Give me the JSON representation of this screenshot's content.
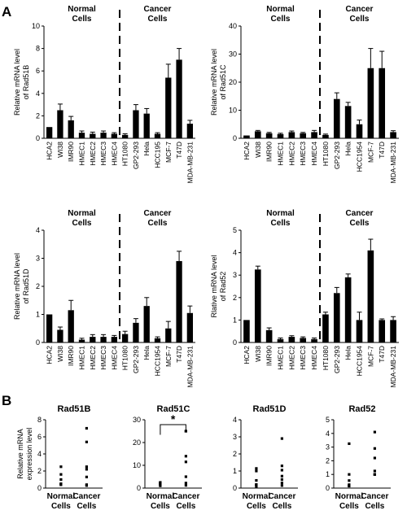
{
  "panel_labels": {
    "a": "A",
    "b": "B"
  },
  "chart_data": [
    {
      "type": "bar",
      "panel": "A",
      "ylabel": [
        "Relative mRNA level",
        "of Rad51B"
      ],
      "ylim": [
        0,
        10
      ],
      "yticks": [
        0,
        2,
        4,
        6,
        8,
        10
      ],
      "group_labels": {
        "normal": [
          "Normal",
          "Cells"
        ],
        "cancer": [
          "Cancer",
          "Cells"
        ]
      },
      "categories": [
        "HCA2",
        "WI38",
        "IMR90",
        "HMEC1",
        "HMEC2",
        "HMEC3",
        "HMEC4",
        "HT1080",
        "GP2-293",
        "Hela",
        "HCC195",
        "MCF-7",
        "T47D",
        "MDA-MB-231"
      ],
      "values": [
        1.0,
        2.5,
        1.6,
        0.5,
        0.4,
        0.5,
        0.4,
        0.3,
        2.5,
        2.2,
        0.4,
        5.4,
        7.0,
        1.3
      ],
      "errors": [
        0.0,
        0.55,
        0.35,
        0.15,
        0.15,
        0.15,
        0.1,
        0.1,
        0.5,
        0.45,
        0.1,
        1.2,
        1.0,
        0.3
      ],
      "divider_after_index": 6
    },
    {
      "type": "bar",
      "panel": "A",
      "ylabel": [
        "Relative mRNA level",
        "of Rad51C"
      ],
      "ylim": [
        0,
        40
      ],
      "yticks": [
        0,
        10,
        20,
        30,
        40
      ],
      "group_labels": {
        "normal": [
          "Normal",
          "Cells"
        ],
        "cancer": [
          "Cancer",
          "Cells"
        ]
      },
      "categories": [
        "HCA2",
        "WI38",
        "IMR90",
        "HMEC1",
        "HMEC2",
        "HMEC3",
        "HMEC4",
        "HT1080",
        "GP2-293",
        "Hela",
        "HCC1954",
        "MCF-7",
        "T47D",
        "MDA-MB-231"
      ],
      "values": [
        1.0,
        2.5,
        1.8,
        1.5,
        2.2,
        1.8,
        2.2,
        1.2,
        14.0,
        11.5,
        5.0,
        25.0,
        25.0,
        2.2
      ],
      "errors": [
        0.0,
        0.3,
        0.3,
        0.3,
        0.4,
        0.3,
        0.6,
        0.3,
        2.2,
        1.3,
        1.5,
        7.0,
        6.0,
        0.5
      ],
      "divider_after_index": 6
    },
    {
      "type": "bar",
      "panel": "A",
      "ylabel": [
        "Relative mRNA level",
        "of Rad51D"
      ],
      "ylim": [
        0,
        4
      ],
      "yticks": [
        0,
        1,
        2,
        3,
        4
      ],
      "group_labels": {
        "normal": [
          "Normal",
          "Cells"
        ],
        "cancer": [
          "Cancer",
          "Cells"
        ]
      },
      "categories": [
        "HCA2",
        "WI38",
        "IMR90",
        "HMEC1",
        "HMEC2",
        "HMEC3",
        "HMEC4",
        "HT1080",
        "GP2-293",
        "Hela",
        "HCC1954",
        "MCF-7",
        "T47D",
        "MDA-MB-231"
      ],
      "values": [
        1.0,
        0.45,
        1.15,
        0.1,
        0.2,
        0.2,
        0.2,
        0.3,
        0.7,
        1.3,
        0.15,
        0.5,
        2.9,
        1.05
      ],
      "errors": [
        0.0,
        0.1,
        0.35,
        0.05,
        0.08,
        0.08,
        0.05,
        0.1,
        0.15,
        0.3,
        0.05,
        0.25,
        0.35,
        0.25
      ],
      "divider_after_index": 6
    },
    {
      "type": "bar",
      "panel": "A",
      "ylabel": [
        "Rlative mRNA level",
        "of Rad52"
      ],
      "ylim": [
        0,
        5
      ],
      "yticks": [
        0,
        1,
        2,
        3,
        4,
        5
      ],
      "group_labels": {
        "normal": [
          "Normal",
          "Cells"
        ],
        "cancer": [
          "Cancer",
          "Cells"
        ]
      },
      "categories": [
        "HCA2",
        "WI38",
        "IMR90",
        "HMEC1",
        "HMEC2",
        "HMEC3",
        "HMEC4",
        "HT1080",
        "GP2-293",
        "Hela",
        "HCC1954",
        "MCF-7",
        "T47D",
        "MDA-MB-231"
      ],
      "values": [
        1.0,
        3.25,
        0.55,
        0.15,
        0.25,
        0.2,
        0.15,
        1.25,
        2.2,
        2.9,
        1.0,
        4.1,
        1.0,
        1.0
      ],
      "errors": [
        0.0,
        0.15,
        0.1,
        0.05,
        0.05,
        0.05,
        0.05,
        0.1,
        0.25,
        0.15,
        0.35,
        0.5,
        0.05,
        0.15
      ],
      "divider_after_index": 6
    },
    {
      "type": "scatter",
      "panel": "B",
      "title": "Rad51B",
      "ylabel": [
        "Relative mRNA",
        "expression level"
      ],
      "ylim": [
        0,
        8
      ],
      "yticks": [
        0,
        2,
        4,
        6,
        8
      ],
      "groups": [
        {
          "label": [
            "Normal",
            "Cells"
          ],
          "values": [
            1.0,
            2.5,
            1.6,
            0.5,
            0.4,
            0.5,
            0.4
          ]
        },
        {
          "label": [
            "Cancer",
            "Cells"
          ],
          "values": [
            0.3,
            2.5,
            2.2,
            0.4,
            5.4,
            7.0,
            1.3
          ]
        }
      ]
    },
    {
      "type": "scatter",
      "panel": "B",
      "title": "Rad51C",
      "ylim": [
        0,
        30
      ],
      "yticks": [
        0,
        10,
        20,
        30
      ],
      "significance": "*",
      "groups": [
        {
          "label": [
            "Normal",
            "Cells"
          ],
          "values": [
            1.0,
            2.5,
            1.8,
            1.5,
            2.2,
            1.8,
            2.2
          ]
        },
        {
          "label": [
            "Cancer",
            "Cells"
          ],
          "values": [
            1.2,
            14.0,
            11.5,
            5.0,
            25.0,
            25.0,
            2.2
          ]
        }
      ]
    },
    {
      "type": "scatter",
      "panel": "B",
      "title": "Rad51D",
      "ylim": [
        0,
        4
      ],
      "yticks": [
        0,
        1,
        2,
        3,
        4
      ],
      "groups": [
        {
          "label": [
            "Normal",
            "Cells"
          ],
          "values": [
            1.0,
            0.45,
            1.15,
            0.1,
            0.2,
            0.2,
            0.2
          ]
        },
        {
          "label": [
            "Cancer",
            "Cells"
          ],
          "values": [
            0.3,
            0.7,
            1.3,
            0.15,
            0.5,
            2.9,
            1.05
          ]
        }
      ]
    },
    {
      "type": "scatter",
      "panel": "B",
      "title": "Rad52",
      "ylim": [
        0,
        5
      ],
      "yticks": [
        0,
        1,
        2,
        3,
        4,
        5
      ],
      "groups": [
        {
          "label": [
            "Normal",
            "Cells"
          ],
          "values": [
            1.0,
            3.25,
            0.55,
            0.15,
            0.25,
            0.2,
            0.15
          ]
        },
        {
          "label": [
            "Cancer",
            "Cells"
          ],
          "values": [
            1.25,
            2.2,
            2.9,
            1.0,
            4.1,
            1.0,
            1.0
          ]
        }
      ]
    }
  ]
}
